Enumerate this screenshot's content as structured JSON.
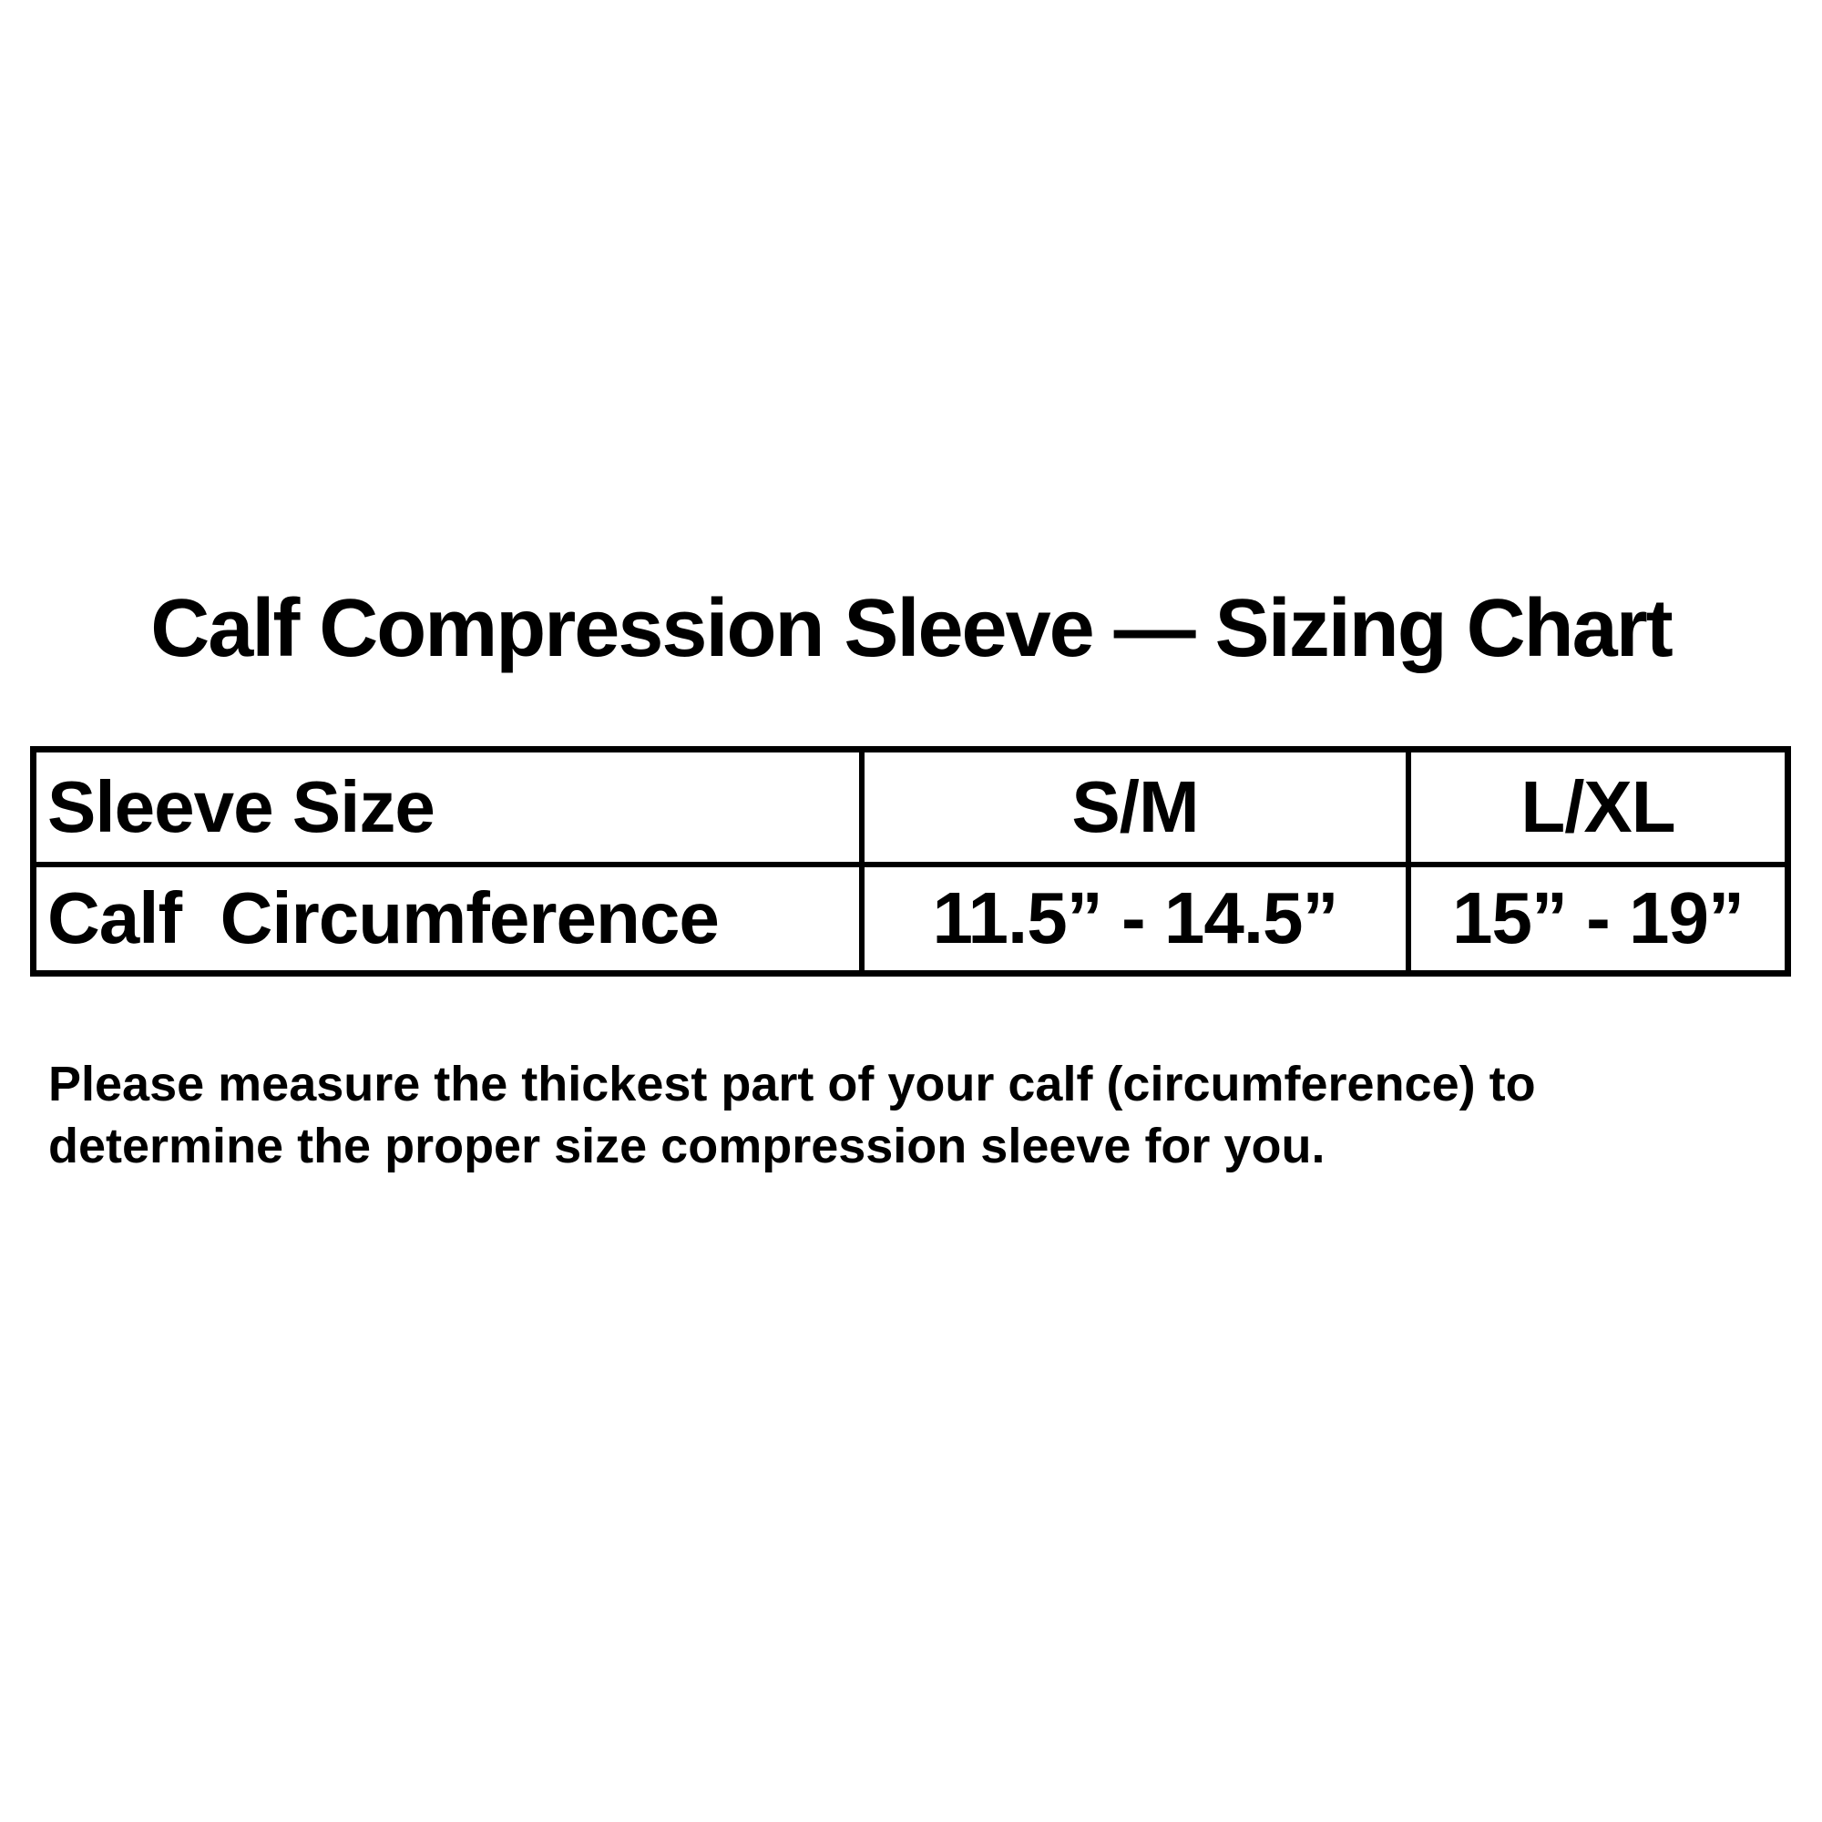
{
  "page": {
    "background_color": "#ffffff",
    "text_color": "#000000"
  },
  "title": "Calf Compression Sleeve — Sizing Chart",
  "table": {
    "border_color": "#000000",
    "header_row": {
      "label": "Sleeve Size",
      "values": [
        "S/M",
        "L/XL"
      ]
    },
    "measure_row": {
      "label": "Calf  Circumference",
      "values": [
        "11.5” - 14.5”",
        "15” - 19”"
      ]
    }
  },
  "note": {
    "lines": [
      "Please measure the thickest part of your calf (circumference) to",
      "determine the proper size compression sleeve for you."
    ]
  }
}
